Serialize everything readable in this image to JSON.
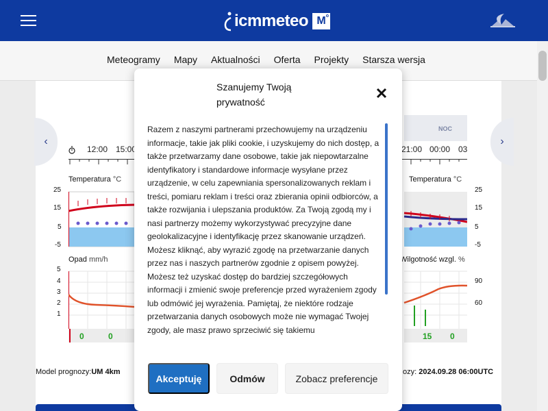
{
  "header": {
    "logo_text": "icmmeteo",
    "logo_badge": "M",
    "logo_badge_sup": "o",
    "menu_icon": "hamburger-icon",
    "night_icon": "moon-mountain-icon",
    "brand_color": "#0e3aa0"
  },
  "nav": {
    "items": [
      "Meteogramy",
      "Mapy",
      "Aktualności",
      "Oferta",
      "Projekty",
      "Starsza wersja"
    ]
  },
  "meteogram": {
    "night_label": "NOC",
    "times_left": [
      "12:00",
      "15:00"
    ],
    "times_right": [
      "21:00",
      "00:00",
      "03"
    ],
    "temperature_title": "Temperatura",
    "temperature_unit": "°C",
    "temperature_title_right": "Temperatura",
    "temperature_ticks": [
      "25",
      "15",
      "5",
      "-5"
    ],
    "precip_title": "Opad",
    "precip_unit": "mm/h",
    "precip_ticks": [
      "5",
      "4",
      "3",
      "2",
      "1"
    ],
    "humidity_title": "Wilgotność wzgl.",
    "humidity_unit": "%",
    "humidity_ticks": [
      "90",
      "60"
    ],
    "precip_values_left": [
      "0",
      "0"
    ],
    "precip_values_right": [
      "15",
      "0"
    ],
    "temp_line_color": "#d0021b",
    "dewpoint_color": "#6a5acd",
    "humidity_color": "#e0522a"
  },
  "footer": {
    "model_label": "Model prognozy:",
    "model_value": "UM 4km",
    "forecast_label": "ozy:",
    "forecast_value": "2024.09.28 06:00UTC"
  },
  "modal": {
    "title": "Szanujemy Twoją prywatność",
    "body": "Razem z naszymi partnerami przechowujemy na urządzeniu informacje, takie jak pliki cookie, i uzyskujemy do nich dostęp, a także przetwarzamy dane osobowe, takie jak niepowtarzalne identyfikatory i standardowe informacje wysyłane przez urządzenie, w celu zapewniania spersonalizowanych reklam i treści, pomiaru reklam i treści oraz zbierania opinii odbiorców, a także rozwijania i ulepszania produktów. Za Twoją zgodą my i nasi partnerzy możemy wykorzystywać precyzyjne dane geolokalizacyjne i identyfikację przez skanowanie urządzeń. Możesz kliknąć, aby wyrazić zgodę na przetwarzanie danych przez nas i naszych partnerów zgodnie z opisem powyżej. Możesz też uzyskać dostęp do bardziej szczegółowych informacji i zmienić swoje preferencje przed wyrażeniem zgody lub odmówić jej wyrażenia. Pamiętaj, że niektóre rodzaje przetwarzania danych osobowych może nie wymagać Twojej zgody, ale masz prawo sprzeciwić się takiemu",
    "accept_label": "Akceptuję",
    "deny_label": "Odmów",
    "prefs_label": "Zobacz preferencje",
    "close_icon": "close-icon",
    "accent_color": "#1f6fc2"
  }
}
